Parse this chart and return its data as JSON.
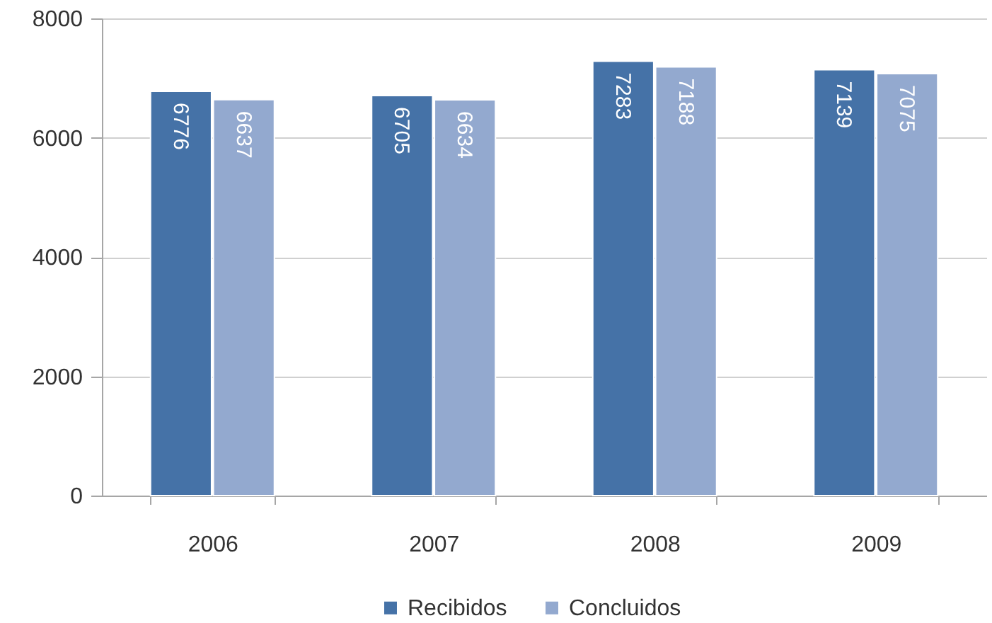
{
  "chart_data": {
    "type": "bar",
    "categories": [
      "2006",
      "2007",
      "2008",
      "2009"
    ],
    "series": [
      {
        "name": "Recibidos",
        "color": "#4572a7",
        "values": [
          6776,
          6705,
          7283,
          7139
        ]
      },
      {
        "name": "Concluidos",
        "color": "#93a9cf",
        "values": [
          6637,
          6634,
          7188,
          7075
        ]
      }
    ],
    "ylim": [
      0,
      8000
    ],
    "yticks": [
      0,
      2000,
      4000,
      6000,
      8000
    ],
    "grid": "y",
    "legend": "bottom",
    "data_labels": true
  }
}
